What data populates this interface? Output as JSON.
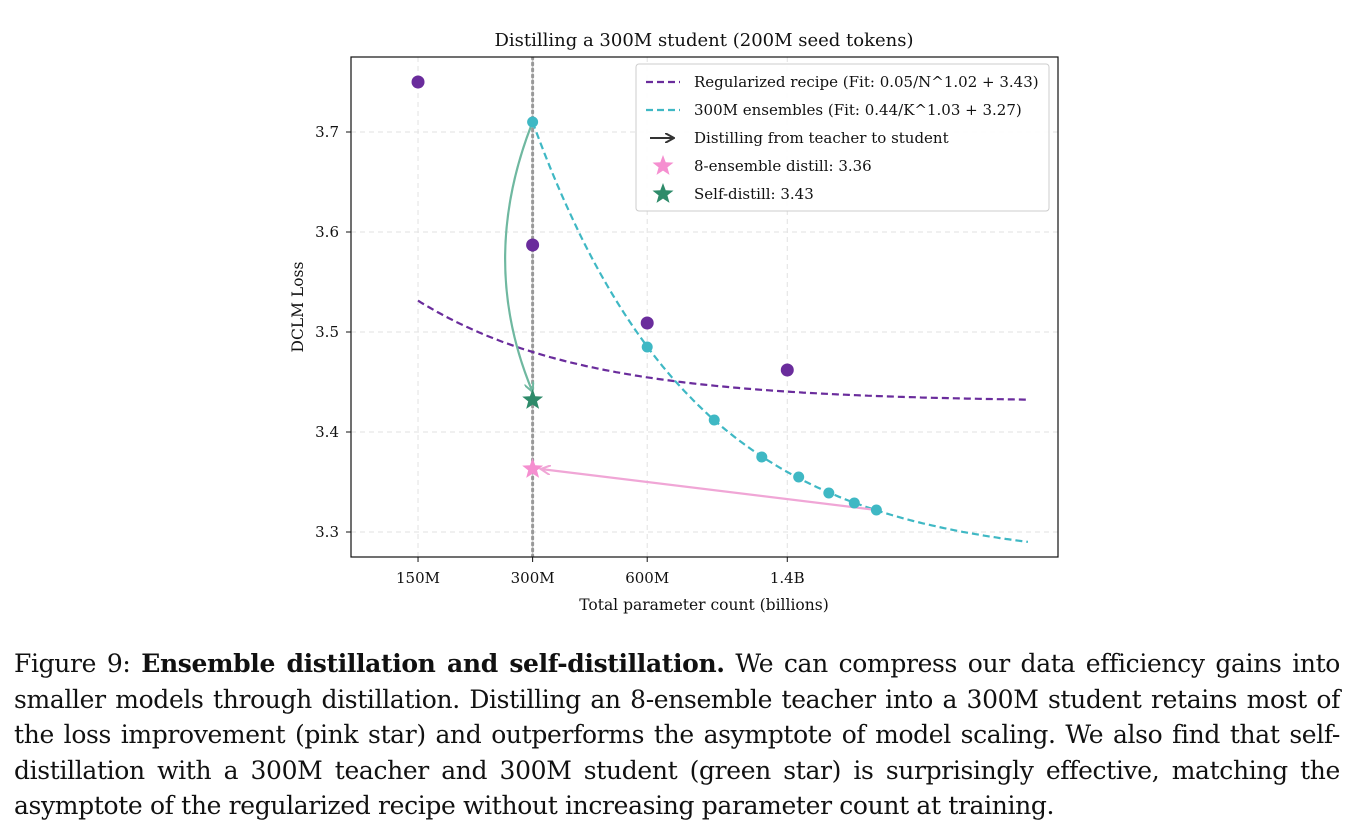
{
  "chart_data": {
    "type": "line",
    "title": "Distilling a 300M student (200M seed tokens)",
    "xlabel": "Total parameter count (billions)",
    "ylabel": "DCLM Loss",
    "x_scale": "log2",
    "xlim": [
      0.1,
      7.2
    ],
    "ylim": [
      3.275,
      3.775
    ],
    "x_ticks": [
      {
        "value": 0.15,
        "label": "150M"
      },
      {
        "value": 0.3,
        "label": "300M"
      },
      {
        "value": 0.6,
        "label": "600M"
      },
      {
        "value": 1.4,
        "label": "1.4B"
      }
    ],
    "y_ticks": [
      {
        "value": 3.3,
        "label": "3.3"
      },
      {
        "value": 3.4,
        "label": "3.4"
      },
      {
        "value": 3.5,
        "label": "3.5"
      },
      {
        "value": 3.6,
        "label": "3.6"
      },
      {
        "value": 3.7,
        "label": "3.7"
      }
    ],
    "grid": true,
    "legend_position": "top-right",
    "series": [
      {
        "name": "Regularized recipe (Fit: 0.05/N^1.02 + 3.43)",
        "color": "#6a2c9c",
        "fit": {
          "a": 0.05,
          "b": 1.02,
          "e": 3.43,
          "unit": 0.3
        },
        "fit_range": [
          0.15,
          6
        ],
        "points": [
          {
            "x": 0.15,
            "y": 3.75
          },
          {
            "x": 0.3,
            "y": 3.587
          },
          {
            "x": 0.6,
            "y": 3.509
          },
          {
            "x": 1.4,
            "y": 3.462
          }
        ]
      },
      {
        "name": "300M ensembles (Fit: 0.44/K^1.03 + 3.27)",
        "color": "#3fb8c4",
        "fit": {
          "a": 0.44,
          "b": 1.03,
          "e": 3.27,
          "unit": 0.3
        },
        "fit_range": [
          0.3,
          6
        ],
        "points": [
          {
            "x": 0.3,
            "y": 3.71
          },
          {
            "x": 0.6,
            "y": 3.485
          },
          {
            "x": 0.9,
            "y": 3.412
          },
          {
            "x": 1.2,
            "y": 3.375
          },
          {
            "x": 1.5,
            "y": 3.355
          },
          {
            "x": 1.8,
            "y": 3.339
          },
          {
            "x": 2.1,
            "y": 3.329
          },
          {
            "x": 2.4,
            "y": 3.322
          }
        ]
      }
    ],
    "arrows_label": "Distilling from teacher to student",
    "arrows": [
      {
        "from": {
          "x": 2.4,
          "y": 3.322
        },
        "to": {
          "x": 0.3,
          "y": 3.363
        },
        "color": "#f0a6d6",
        "curve": "straight"
      },
      {
        "from": {
          "x": 0.3,
          "y": 3.71
        },
        "to": {
          "x": 0.3,
          "y": 3.432
        },
        "color": "#6fb8a0",
        "curve": "left"
      }
    ],
    "stars": [
      {
        "name": "8-ensemble distill: 3.36",
        "x": 0.3,
        "y": 3.363,
        "color": "#f58fd0"
      },
      {
        "name": "Self-distill: 3.43",
        "x": 0.3,
        "y": 3.432,
        "color": "#2e8b6a"
      }
    ],
    "vline": {
      "x": 0.3,
      "color": "#999999"
    }
  },
  "caption": {
    "lead": "Figure 9: ",
    "bold": "Ensemble distillation and self-distillation.",
    "body": " We can compress our data efficiency gains into smaller models through distillation. Distilling an 8-ensemble teacher into a 300M student retains most of the loss improvement (pink star) and outperforms the asymptote of model scaling. We also find that self-distillation with a 300M teacher and 300M student (green star) is surprisingly effective, matching the asymptote of the regularized recipe without increasing parameter count at training."
  }
}
